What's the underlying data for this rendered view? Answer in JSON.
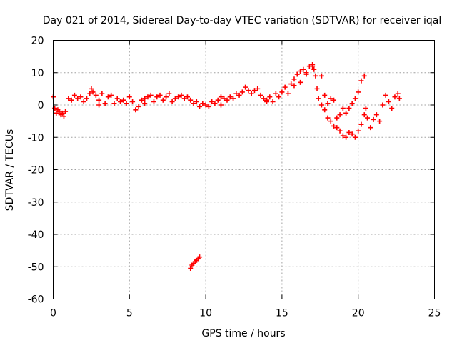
{
  "chart_data": {
    "type": "scatter",
    "title": "Day 021 of 2014, Sidereal Day-to-day VTEC variation (SDTVAR) for receiver iqal",
    "xlabel": "GPS time / hours",
    "ylabel": "SDTVAR / TECUs",
    "xlim": [
      0,
      25
    ],
    "ylim": [
      -60,
      20
    ],
    "x_ticks": [
      "0",
      "5",
      "10",
      "15",
      "20",
      "25"
    ],
    "y_ticks": [
      "20",
      "10",
      "0",
      "-10",
      "-20",
      "-30",
      "-40",
      "-50",
      "-60"
    ],
    "grid": true,
    "marker": "+",
    "series": [
      {
        "name": "SDTVAR",
        "color": "#ff0000",
        "x": [
          0.0,
          0.1,
          0.2,
          0.3,
          0.4,
          0.5,
          0.6,
          0.7,
          0.8,
          1.0,
          1.2,
          1.4,
          1.6,
          1.8,
          2.0,
          2.2,
          2.4,
          2.5,
          2.6,
          2.8,
          3.0,
          3.2,
          3.4,
          3.6,
          3.8,
          4.0,
          4.2,
          4.4,
          4.6,
          4.8,
          5.0,
          5.2,
          5.4,
          5.6,
          5.8,
          6.0,
          6.2,
          6.4,
          6.6,
          6.8,
          7.0,
          7.2,
          7.4,
          7.6,
          7.8,
          8.0,
          8.2,
          8.4,
          8.6,
          8.8,
          9.0,
          9.2,
          9.4,
          9.6,
          9.8,
          10.0,
          10.2,
          10.4,
          10.6,
          10.8,
          11.0,
          11.2,
          11.4,
          11.6,
          11.8,
          12.0,
          12.2,
          12.4,
          12.6,
          12.8,
          13.0,
          13.2,
          13.4,
          13.6,
          13.8,
          14.0,
          14.2,
          14.4,
          14.6,
          14.8,
          15.0,
          15.2,
          15.4,
          15.6,
          15.8,
          16.0,
          16.2,
          16.4,
          16.6,
          16.8,
          17.0,
          17.1,
          17.2,
          17.3,
          17.4,
          17.6,
          17.8,
          18.0,
          18.2,
          18.4,
          18.6,
          18.8,
          19.0,
          19.2,
          19.4,
          19.6,
          19.8,
          20.0,
          20.2,
          20.4,
          20.5,
          20.6,
          20.8,
          21.0,
          21.2,
          21.4,
          21.6,
          21.8,
          22.0,
          22.2,
          22.4,
          22.6,
          22.7,
          9.0,
          9.1,
          9.2,
          9.3,
          9.4,
          9.5,
          9.6,
          17.6,
          17.8,
          18.0,
          18.2,
          18.4,
          18.6,
          18.8,
          19.0,
          19.2,
          19.4,
          19.6,
          19.8,
          20.0,
          20.2,
          20.4,
          15.8,
          16.2,
          16.6,
          17.0,
          3.0,
          6.0,
          11.0,
          14.0
        ],
        "y": [
          2.5,
          -1.0,
          -2.5,
          -1.5,
          -2.0,
          -3.0,
          -2.5,
          -3.5,
          -2.0,
          2.0,
          1.5,
          3.0,
          2.0,
          2.5,
          1.0,
          2.0,
          3.5,
          5.0,
          4.0,
          3.0,
          1.5,
          3.5,
          0.5,
          2.5,
          3.0,
          0.5,
          2.0,
          1.0,
          1.5,
          0.5,
          2.5,
          1.0,
          -1.5,
          -0.5,
          1.5,
          2.0,
          2.5,
          3.0,
          1.0,
          2.5,
          3.0,
          1.5,
          2.5,
          3.5,
          1.0,
          2.0,
          2.5,
          3.0,
          2.0,
          2.5,
          1.5,
          0.5,
          1.0,
          -0.5,
          0.5,
          0.0,
          -0.5,
          1.0,
          0.5,
          1.5,
          2.5,
          2.0,
          1.5,
          2.5,
          2.0,
          3.5,
          3.0,
          4.0,
          5.5,
          4.5,
          3.5,
          4.5,
          5.0,
          3.0,
          2.0,
          1.5,
          2.5,
          1.0,
          3.5,
          2.5,
          4.0,
          5.5,
          3.5,
          6.5,
          8.0,
          9.5,
          10.5,
          11.0,
          10.0,
          12.0,
          12.5,
          11.0,
          9.0,
          5.0,
          2.0,
          0.0,
          -1.5,
          -4.0,
          -5.0,
          -6.5,
          -7.0,
          -8.0,
          -9.5,
          -10.0,
          -8.5,
          -9.0,
          -10.0,
          -8.0,
          -6.0,
          -3.0,
          -1.0,
          -4.0,
          -7.0,
          -4.5,
          -3.0,
          -5.0,
          0.0,
          3.0,
          1.0,
          -1.0,
          2.5,
          3.5,
          2.0,
          -50.5,
          -49.5,
          -49.0,
          -48.5,
          -48.0,
          -47.5,
          -47.0,
          9.0,
          3.0,
          0.5,
          2.0,
          1.5,
          -4.0,
          -3.0,
          -1.0,
          -2.5,
          -1.0,
          0.5,
          2.0,
          4.0,
          7.5,
          9.0,
          6.0,
          7.0,
          9.5,
          12.0,
          0.0,
          0.5,
          0.0,
          1.0
        ]
      }
    ]
  }
}
